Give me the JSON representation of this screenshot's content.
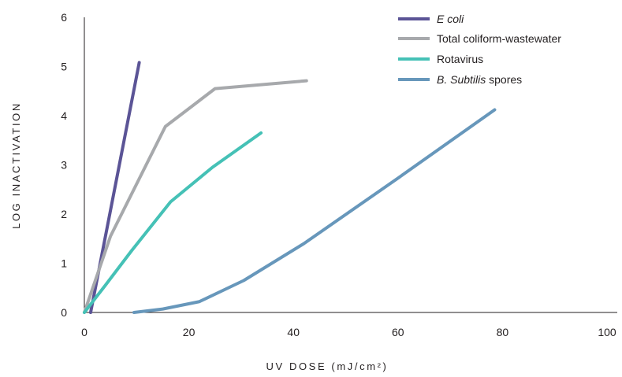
{
  "chart_data": {
    "type": "line",
    "xlabel": "UV DOSE (mJ/cm²)",
    "ylabel": "LOG INACTIVATION",
    "xlim": [
      0,
      100
    ],
    "ylim": [
      0,
      6
    ],
    "x_ticks": [
      0,
      20,
      40,
      60,
      80,
      100
    ],
    "y_ticks": [
      0,
      1,
      2,
      3,
      4,
      5,
      6
    ],
    "grid": false,
    "legend_position": "top-right",
    "series": [
      {
        "name": "E coli",
        "italic": true,
        "color": "#5b5496",
        "x": [
          1.2,
          10.5
        ],
        "y": [
          0,
          5.08
        ]
      },
      {
        "name": "Total coliform-wastewater",
        "italic": false,
        "color": "#a7a9ac",
        "x": [
          0,
          5,
          15.5,
          25,
          42.5
        ],
        "y": [
          0,
          1.55,
          3.78,
          4.55,
          4.71
        ]
      },
      {
        "name": "Rotavirus",
        "italic": false,
        "color": "#45c1b6",
        "x": [
          0,
          4,
          9,
          16.5,
          24.5,
          33.8
        ],
        "y": [
          0,
          0.55,
          1.25,
          2.25,
          2.95,
          3.65
        ]
      },
      {
        "name": "B. Subtilis spores",
        "name_parts": [
          "B. Subtilis",
          " spores"
        ],
        "italic": "partial",
        "color": "#6797bb",
        "x": [
          9.5,
          15,
          22,
          30.5,
          42,
          60,
          78.5
        ],
        "y": [
          0,
          0.07,
          0.22,
          0.65,
          1.4,
          2.73,
          4.12
        ]
      }
    ]
  }
}
